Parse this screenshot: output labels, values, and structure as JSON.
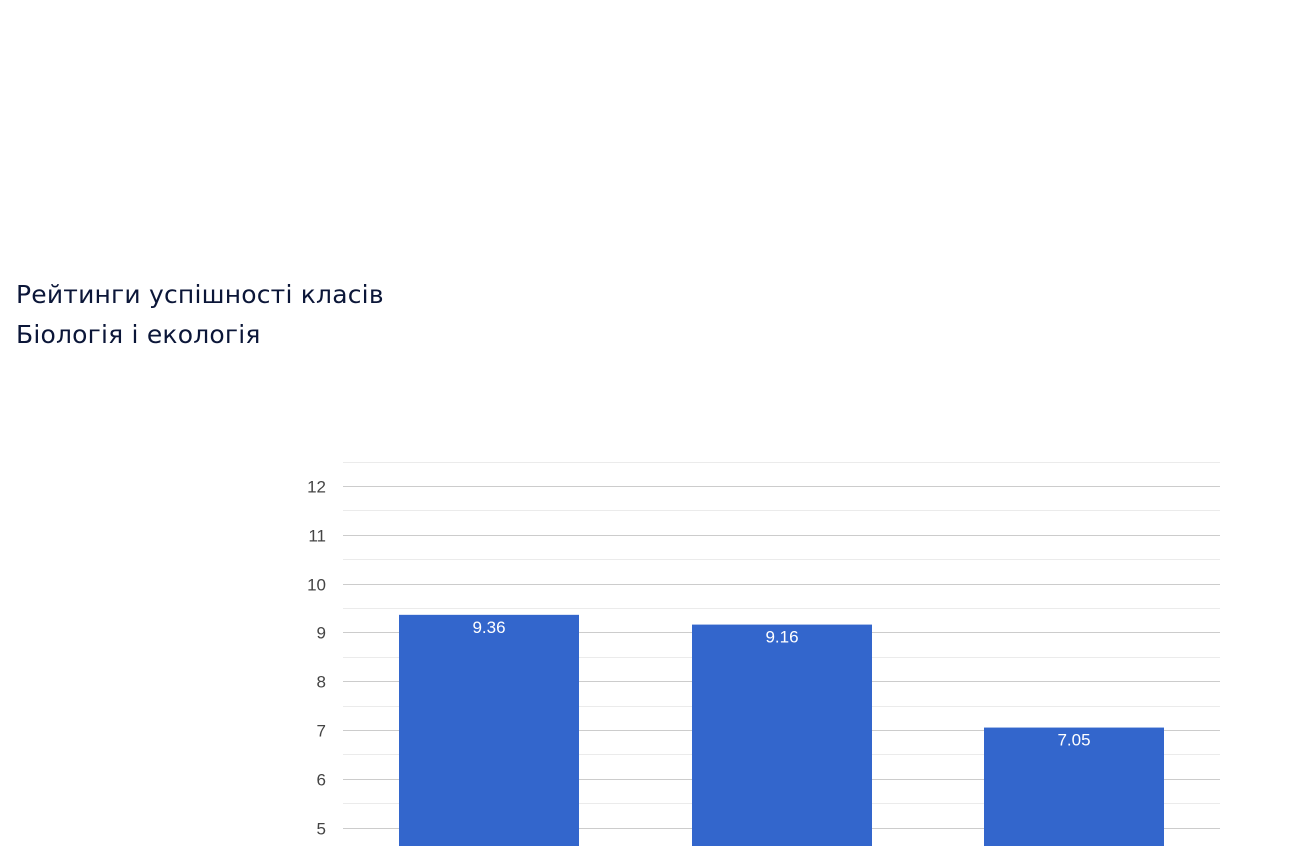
{
  "header": {
    "title": "Рейтинги успішності класів",
    "subtitle": "Біологія і екологія"
  },
  "chart_data": {
    "type": "bar",
    "categories": [
      "",
      "",
      ""
    ],
    "values": [
      9.36,
      9.16,
      7.05
    ],
    "data_labels": [
      "9.36",
      "9.16",
      "7.05"
    ],
    "yticks": [
      "5",
      "6",
      "7",
      "8",
      "9",
      "10",
      "11",
      "12"
    ],
    "ylim_visible": [
      5,
      12
    ],
    "grid": true,
    "minor_grid": true,
    "legend": "none",
    "xlabel": "",
    "ylabel": "",
    "colors": {
      "bar": "#3366cc",
      "major_grid": "#cccccc",
      "minor_grid": "#ebebeb",
      "tick_label": "#444444",
      "data_label": "#ffffff"
    }
  }
}
